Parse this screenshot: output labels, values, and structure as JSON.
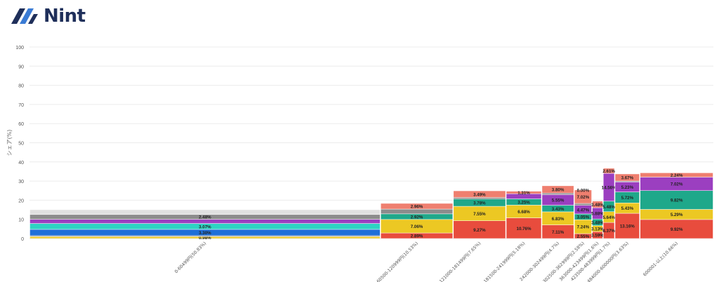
{
  "brand": {
    "name": "Nint",
    "logo_icon": "nint-logo-mark",
    "brand_color": "#1f2f5a"
  },
  "chart_data": {
    "type": "marimekko",
    "title": "",
    "ylabel": "シェア(%)",
    "xlabel": "",
    "ylim": [
      0,
      100
    ],
    "yticks": [
      0,
      10,
      20,
      30,
      40,
      50,
      60,
      70,
      80,
      90,
      100
    ],
    "grid": true,
    "legend": "none",
    "segment_colors": [
      "#e84c3d",
      "#ecc823",
      "#1fa88a",
      "#9b3fc0",
      "#1f6fd8",
      "#2ed3c3",
      "#8c8c8c",
      "#ef7f6f"
    ],
    "columns": [
      {
        "label": "0-60499円(50.83%)",
        "width_share": 50.83,
        "segments": [
          {
            "value": 0.98,
            "label": "0.98%",
            "color": "#ecc823"
          },
          {
            "value": 0.5,
            "label": "",
            "color": "#8c8c8c"
          },
          {
            "value": 3.3,
            "label": "3.30%",
            "color": "#1f6fd8"
          },
          {
            "value": 3.07,
            "label": "3.07%",
            "color": "#2ed3c3"
          },
          {
            "value": 2.2,
            "label": "",
            "color": "#9b3fc0"
          },
          {
            "value": 2.48,
            "label": "2.48%",
            "color": "#8c8c8c"
          },
          {
            "value": 2.5,
            "label": "",
            "color": "#e0e0e0"
          }
        ]
      },
      {
        "label": "60500-120999円(10.53%)",
        "width_share": 10.53,
        "segments": [
          {
            "value": 2.89,
            "label": "2.89%",
            "color": "#e84c3d"
          },
          {
            "value": 7.06,
            "label": "7.06%",
            "color": "#ecc823"
          },
          {
            "value": 2.92,
            "label": "2.92%",
            "color": "#1fa88a"
          },
          {
            "value": 2.5,
            "label": "",
            "color": "#8c8c8c"
          },
          {
            "value": 2.96,
            "label": "2.96%",
            "color": "#ef7f6f"
          }
        ]
      },
      {
        "label": "121000-181499円(7.65%)",
        "width_share": 7.65,
        "segments": [
          {
            "value": 9.27,
            "label": "9.27%",
            "color": "#e84c3d"
          },
          {
            "value": 7.55,
            "label": "7.55%",
            "color": "#ecc823"
          },
          {
            "value": 3.78,
            "label": "3.78%",
            "color": "#1fa88a"
          },
          {
            "value": 0.8,
            "label": "",
            "color": "#8c8c8c"
          },
          {
            "value": 3.49,
            "label": "3.49%",
            "color": "#ef7f6f"
          }
        ]
      },
      {
        "label": "181500-241999円(5.18%)",
        "width_share": 5.18,
        "segments": [
          {
            "value": 10.76,
            "label": "10.76%",
            "color": "#e84c3d"
          },
          {
            "value": 6.68,
            "label": "6.68%",
            "color": "#ecc823"
          },
          {
            "value": 3.25,
            "label": "3.25%",
            "color": "#1fa88a"
          },
          {
            "value": 2.7,
            "label": "",
            "color": "#9b3fc0"
          },
          {
            "value": 1.31,
            "label": "1.31%",
            "color": "#ef7f6f"
          }
        ]
      },
      {
        "label": "242000-302499円(4.7%)",
        "width_share": 4.7,
        "segments": [
          {
            "value": 7.11,
            "label": "7.11%",
            "color": "#e84c3d"
          },
          {
            "value": 6.83,
            "label": "6.83%",
            "color": "#ecc823"
          },
          {
            "value": 3.43,
            "label": "3.43%",
            "color": "#1fa88a"
          },
          {
            "value": 5.55,
            "label": "5.55%",
            "color": "#9b3fc0"
          },
          {
            "value": 0.8,
            "label": "",
            "color": "#8c8c8c"
          },
          {
            "value": 3.8,
            "label": "3.80%",
            "color": "#ef7f6f"
          }
        ]
      },
      {
        "label": "302500-362999円(2.58%)",
        "width_share": 2.58,
        "segments": [
          {
            "value": 2.55,
            "label": "2.55%",
            "color": "#e84c3d"
          },
          {
            "value": 7.24,
            "label": "7.24%",
            "color": "#ecc823"
          },
          {
            "value": 3.05,
            "label": "3.05%",
            "color": "#1fa88a"
          },
          {
            "value": 4.47,
            "label": "4.47%",
            "color": "#9b3fc0"
          },
          {
            "value": 1.0,
            "label": "",
            "color": "#8c8c8c"
          },
          {
            "value": 7.02,
            "label": "7.02%",
            "color": "#ef7f6f"
          },
          {
            "value": 0.0,
            "label": "0.00%",
            "color": "#ef7f6f"
          }
        ]
      },
      {
        "label": "363000-423499円(1.6%)",
        "width_share": 1.6,
        "segments": [
          {
            "value": 3.59,
            "label": "3.59%",
            "color": "#e84c3d"
          },
          {
            "value": 3.13,
            "label": "3.13%",
            "color": "#ecc823"
          },
          {
            "value": 3.48,
            "label": "3.48%",
            "color": "#1fa88a"
          },
          {
            "value": 5.88,
            "label": "5.88%",
            "color": "#9b3fc0"
          },
          {
            "value": 3.48,
            "label": "3.48%",
            "color": "#ef7f6f"
          }
        ]
      },
      {
        "label": "423500-483999円(1.7%)",
        "width_share": 1.7,
        "segments": [
          {
            "value": 8.37,
            "label": "8.37%",
            "color": "#e84c3d"
          },
          {
            "value": 5.64,
            "label": "5.64%",
            "color": "#ecc823"
          },
          {
            "value": 5.48,
            "label": "5.48%",
            "color": "#1fa88a"
          },
          {
            "value": 14.56,
            "label": "14.56%",
            "color": "#9b3fc0"
          },
          {
            "value": 2.61,
            "label": "2.61%",
            "color": "#ef7f6f"
          }
        ]
      },
      {
        "label": "484000-600000円(3.63%)",
        "width_share": 3.63,
        "segments": [
          {
            "value": 13.16,
            "label": "13.16%",
            "color": "#e84c3d"
          },
          {
            "value": 5.43,
            "label": "5.43%",
            "color": "#ecc823"
          },
          {
            "value": 5.72,
            "label": "5.72%",
            "color": "#1fa88a"
          },
          {
            "value": 5.23,
            "label": "5.23%",
            "color": "#9b3fc0"
          },
          {
            "value": 0.5,
            "label": "",
            "color": "#8c8c8c"
          },
          {
            "value": 3.67,
            "label": "3.67%",
            "color": "#ef7f6f"
          }
        ]
      },
      {
        "label": "600001-以上(10.66%)",
        "width_share": 10.66,
        "segments": [
          {
            "value": 9.92,
            "label": "9.92%",
            "color": "#e84c3d"
          },
          {
            "value": 5.29,
            "label": "5.29%",
            "color": "#ecc823"
          },
          {
            "value": 9.82,
            "label": "9.82%",
            "color": "#1fa88a"
          },
          {
            "value": 7.02,
            "label": "7.02%",
            "color": "#9b3fc0"
          },
          {
            "value": 2.24,
            "label": "2.24%",
            "color": "#ef7f6f"
          }
        ]
      }
    ]
  }
}
